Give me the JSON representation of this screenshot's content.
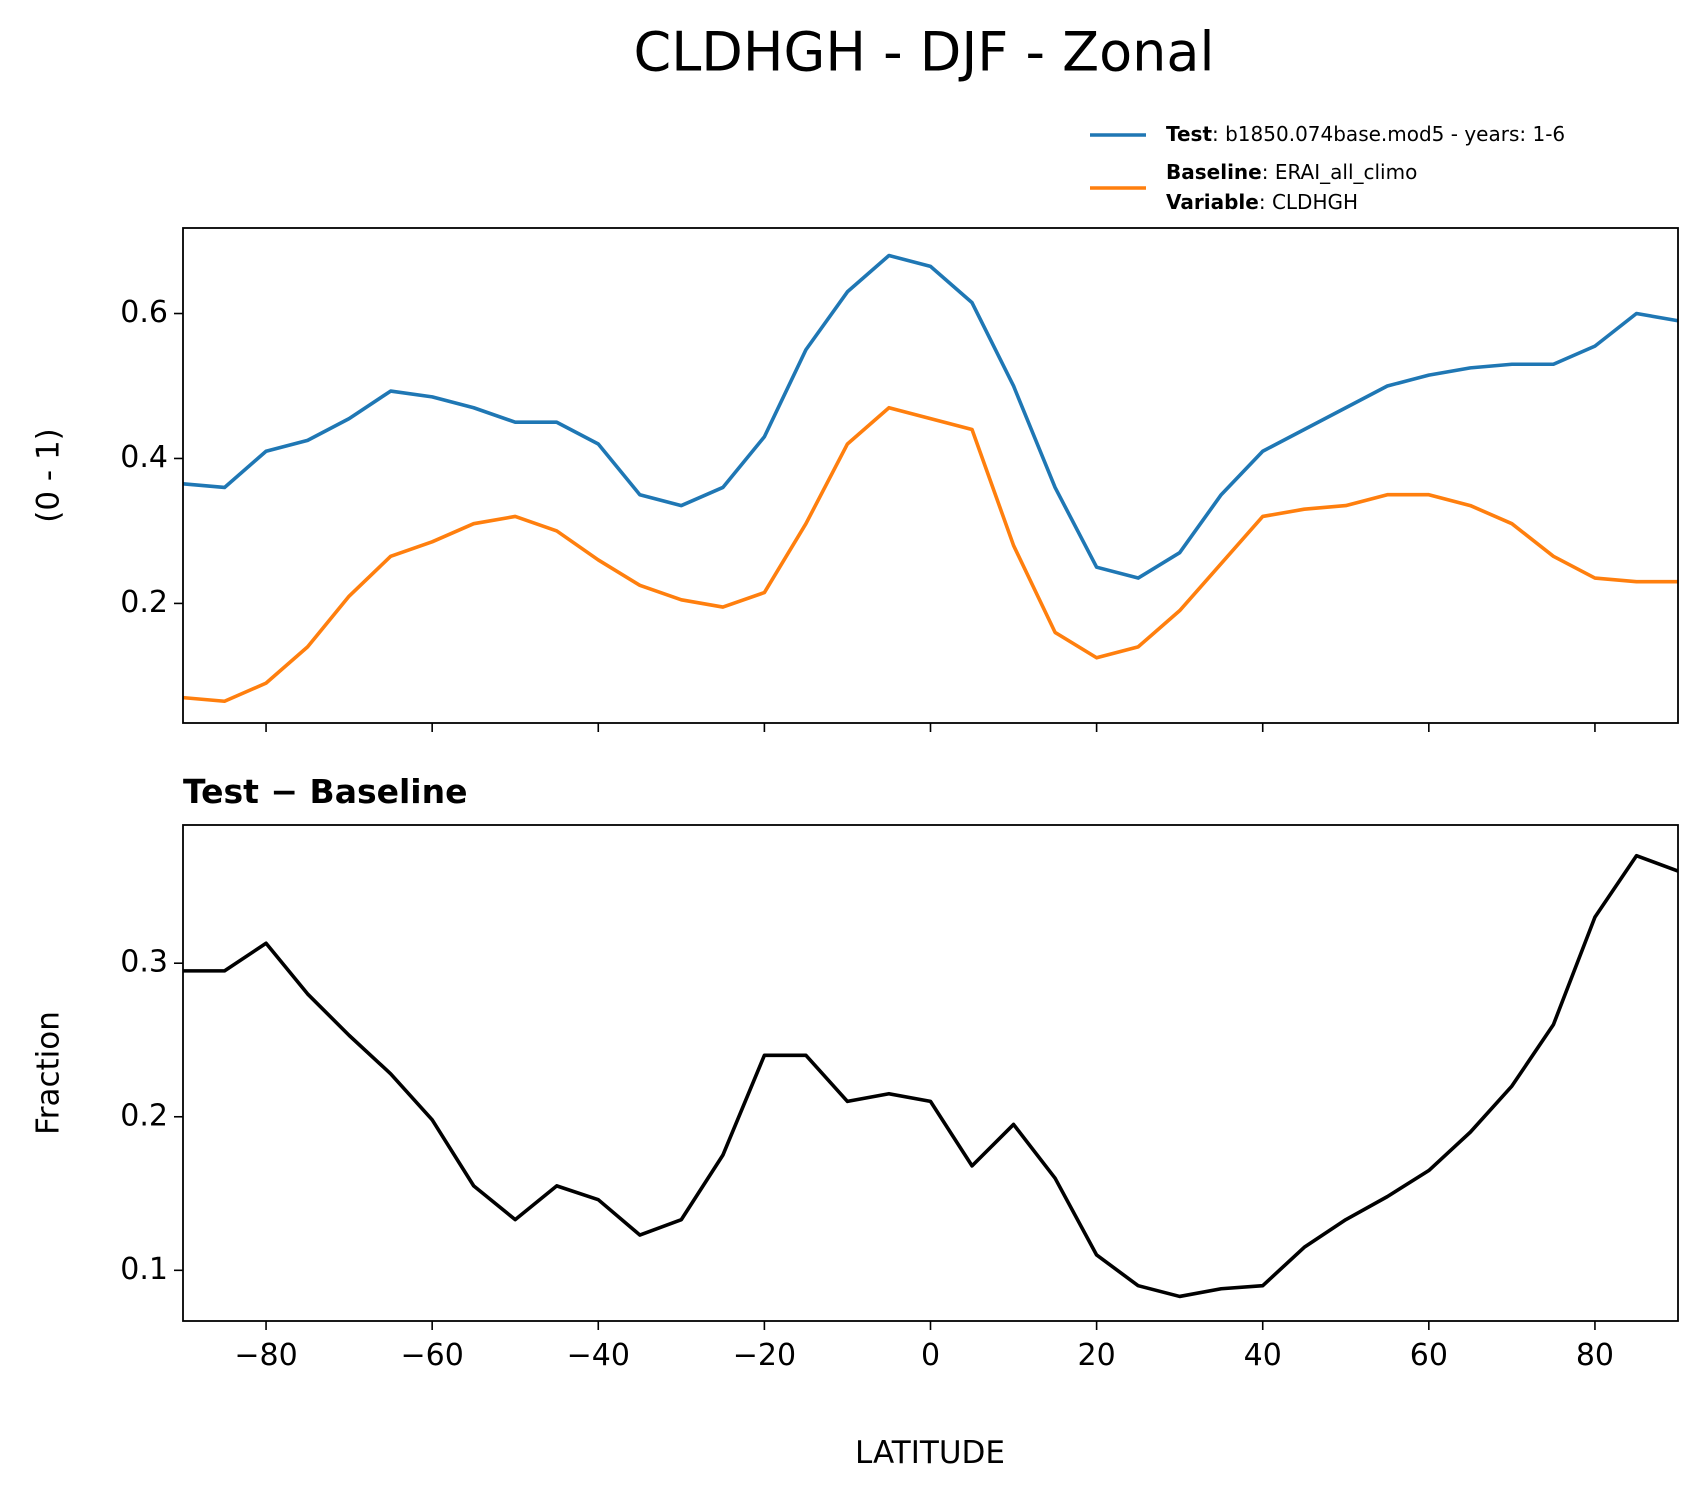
{
  "chart_data": [
    {
      "type": "line",
      "title": "CLDHGH - DJF - Zonal",
      "ylabel": "(0 - 1)",
      "x": [
        -90,
        -85,
        -80,
        -75,
        -70,
        -65,
        -60,
        -55,
        -50,
        -45,
        -40,
        -35,
        -30,
        -25,
        -20,
        -15,
        -10,
        -5,
        0,
        5,
        10,
        15,
        20,
        25,
        30,
        35,
        40,
        45,
        50,
        55,
        60,
        65,
        70,
        75,
        80,
        85,
        90
      ],
      "xlim": [
        -90,
        90
      ],
      "ylim": [
        0.035,
        0.718
      ],
      "yticks": [
        0.2,
        0.4,
        0.6
      ],
      "legend_position": "upper right",
      "variable": {
        "name": "Variable",
        "detail": ": CLDHGH"
      },
      "series": [
        {
          "name": "Test",
          "detail": ": b1850.074base.mod5 - years: 1-6",
          "color": "#1f77b4",
          "values": [
            0.365,
            0.36,
            0.41,
            0.425,
            0.455,
            0.493,
            0.485,
            0.47,
            0.45,
            0.45,
            0.42,
            0.35,
            0.335,
            0.36,
            0.43,
            0.55,
            0.63,
            0.68,
            0.665,
            0.615,
            0.5,
            0.36,
            0.25,
            0.235,
            0.27,
            0.35,
            0.41,
            0.44,
            0.47,
            0.5,
            0.515,
            0.525,
            0.53,
            0.53,
            0.555,
            0.6,
            0.59
          ]
        },
        {
          "name": "Baseline",
          "detail": ": ERAI_all_climo",
          "color": "#ff7f0e",
          "values": [
            0.07,
            0.065,
            0.09,
            0.14,
            0.21,
            0.265,
            0.285,
            0.31,
            0.32,
            0.3,
            0.26,
            0.225,
            0.205,
            0.195,
            0.215,
            0.31,
            0.42,
            0.47,
            0.455,
            0.44,
            0.28,
            0.16,
            0.125,
            0.14,
            0.19,
            0.255,
            0.32,
            0.33,
            0.335,
            0.35,
            0.35,
            0.335,
            0.31,
            0.265,
            0.235,
            0.23,
            0.23
          ]
        }
      ]
    },
    {
      "type": "line",
      "title": "Test − Baseline",
      "xlabel": "LATITUDE",
      "ylabel": "Fraction",
      "x": [
        -90,
        -85,
        -80,
        -75,
        -70,
        -65,
        -60,
        -55,
        -50,
        -45,
        -40,
        -35,
        -30,
        -25,
        -20,
        -15,
        -10,
        -5,
        0,
        5,
        10,
        15,
        20,
        25,
        30,
        35,
        40,
        45,
        50,
        55,
        60,
        65,
        70,
        75,
        80,
        85,
        90
      ],
      "xlim": [
        -90,
        90
      ],
      "xticks": [
        {
          "value": -80,
          "label": "−80"
        },
        {
          "value": -60,
          "label": "−60"
        },
        {
          "value": -40,
          "label": "−40"
        },
        {
          "value": -20,
          "label": "−20"
        },
        0,
        20,
        40,
        60,
        80
      ],
      "ylim": [
        0.067,
        0.39
      ],
      "yticks": [
        0.1,
        0.2,
        0.3
      ],
      "series": [
        {
          "color": "#000000",
          "values": [
            0.295,
            0.295,
            0.313,
            0.28,
            0.253,
            0.228,
            0.198,
            0.155,
            0.133,
            0.155,
            0.146,
            0.123,
            0.133,
            0.175,
            0.24,
            0.24,
            0.21,
            0.215,
            0.21,
            0.168,
            0.195,
            0.16,
            0.11,
            0.09,
            0.083,
            0.088,
            0.09,
            0.115,
            0.133,
            0.148,
            0.165,
            0.19,
            0.22,
            0.26,
            0.33,
            0.37,
            0.36
          ]
        }
      ]
    }
  ]
}
